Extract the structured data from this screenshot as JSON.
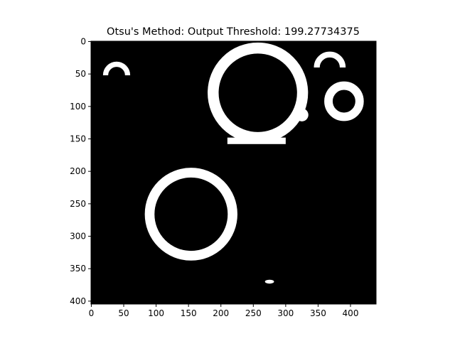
{
  "chart_data": {
    "type": "image",
    "title": "Otsu's Method: Output Threshold: 199.27734375",
    "xlim": [
      -0.5,
      439.5
    ],
    "ylim": [
      404.5,
      -0.5
    ],
    "xticks": [
      0,
      50,
      100,
      150,
      200,
      250,
      300,
      350,
      400
    ],
    "yticks": [
      0,
      50,
      100,
      150,
      200,
      250,
      300,
      350,
      400
    ]
  }
}
